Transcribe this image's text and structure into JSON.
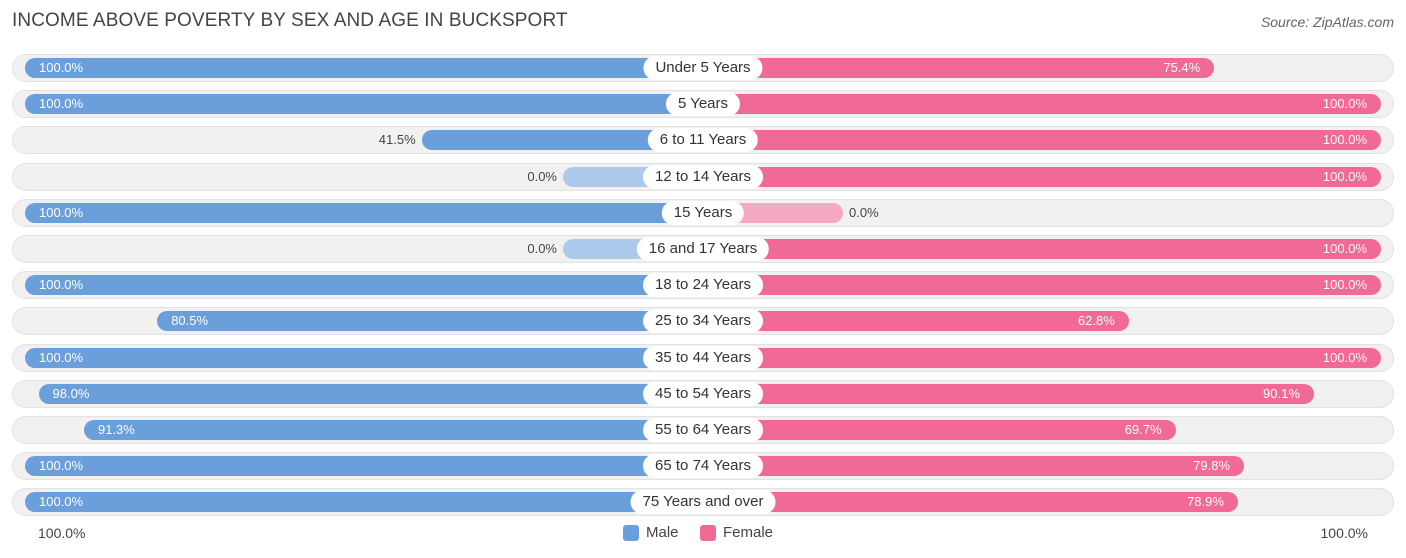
{
  "title": "INCOME ABOVE POVERTY BY SEX AND AGE IN BUCKSPORT",
  "source": "Source: ZipAtlas.com",
  "colors": {
    "male": "#6a9fdc",
    "male_light": "#adc9ec",
    "female": "#f06a95",
    "female_light": "#f5a8c2"
  },
  "chart_data": {
    "type": "bar",
    "orientation": "horizontal-diverging",
    "title": "INCOME ABOVE POVERTY BY SEX AND AGE IN BUCKSPORT",
    "categories": [
      "Under 5 Years",
      "5 Years",
      "6 to 11 Years",
      "12 to 14 Years",
      "15 Years",
      "16 and 17 Years",
      "18 to 24 Years",
      "25 to 34 Years",
      "35 to 44 Years",
      "45 to 54 Years",
      "55 to 64 Years",
      "65 to 74 Years",
      "75 Years and over"
    ],
    "series": [
      {
        "name": "Male",
        "values": [
          100.0,
          100.0,
          41.5,
          0.0,
          100.0,
          0.0,
          100.0,
          80.5,
          100.0,
          98.0,
          91.3,
          100.0,
          100.0
        ],
        "labels": [
          "100.0%",
          "100.0%",
          "41.5%",
          "0.0%",
          "100.0%",
          "0.0%",
          "100.0%",
          "80.5%",
          "100.0%",
          "98.0%",
          "91.3%",
          "100.0%",
          "100.0%"
        ]
      },
      {
        "name": "Female",
        "values": [
          75.4,
          100.0,
          100.0,
          100.0,
          0.0,
          100.0,
          100.0,
          62.8,
          100.0,
          90.1,
          69.7,
          79.8,
          78.9
        ],
        "labels": [
          "75.4%",
          "100.0%",
          "100.0%",
          "100.0%",
          "0.0%",
          "100.0%",
          "100.0%",
          "62.8%",
          "100.0%",
          "90.1%",
          "69.7%",
          "79.8%",
          "78.9%"
        ]
      }
    ],
    "axis_left_label": "100.0%",
    "axis_right_label": "100.0%",
    "xlim": [
      0,
      100
    ],
    "legend": [
      "Male",
      "Female"
    ],
    "legend_position": "bottom-center"
  }
}
